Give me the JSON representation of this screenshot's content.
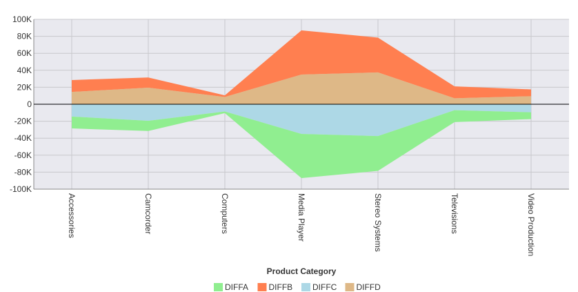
{
  "chart_data": {
    "type": "area",
    "stacked": "diverging",
    "categories": [
      "Accessories",
      "Camcorder",
      "Computers",
      "Media Player",
      "Stereo Systems",
      "Televisions",
      "Video Production"
    ],
    "series": [
      {
        "name": "DIFFA",
        "side": "negative",
        "color": "#90ee90",
        "values": [
          14000,
          12000,
          2000,
          52000,
          41000,
          14000,
          8000
        ]
      },
      {
        "name": "DIFFB",
        "side": "positive",
        "color": "#ff7f50",
        "values": [
          14000,
          12000,
          2000,
          52000,
          41000,
          14000,
          8000
        ]
      },
      {
        "name": "DIFFC",
        "side": "negative",
        "color": "#add8e6",
        "values": [
          14500,
          19500,
          8500,
          35000,
          37500,
          7000,
          9500
        ]
      },
      {
        "name": "DIFFD",
        "side": "positive",
        "color": "#deb887",
        "values": [
          14500,
          19500,
          8500,
          35000,
          37500,
          7000,
          9500
        ]
      }
    ],
    "xlabel": "Product Category",
    "ylabel": "",
    "ylim": [
      -100000,
      100000
    ],
    "yticks": [
      100000,
      80000,
      60000,
      40000,
      20000,
      0,
      -20000,
      -40000,
      -60000,
      -80000,
      -100000
    ],
    "ytick_labels": [
      "100K",
      "80K",
      "60K",
      "40K",
      "20K",
      "0",
      "-20K",
      "-40K",
      "-60K",
      "-80K",
      "-100K"
    ],
    "grid": true,
    "legend_position": "bottom-center",
    "plot_background": "#e9e9ef",
    "grid_color": "#c8c8cc",
    "zero_line_color": "#000000"
  }
}
